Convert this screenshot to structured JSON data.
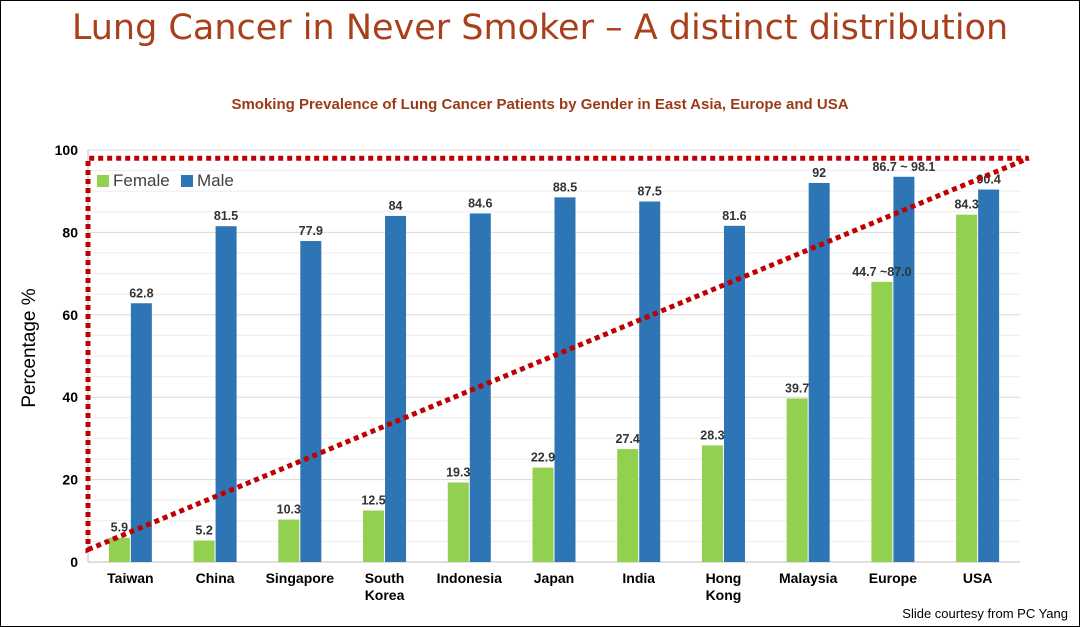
{
  "slide": {
    "title": "Lung Cancer in Never Smoker – A distinct distribution",
    "credit": "Slide courtesy from PC Yang"
  },
  "chart_data": {
    "type": "bar",
    "title": "Smoking Prevalence of Lung Cancer Patients by Gender in East Asia, Europe and USA",
    "xlabel": "",
    "ylabel": "Percentage %",
    "ylim": [
      0,
      100
    ],
    "yticks": [
      0,
      20,
      40,
      60,
      80,
      100
    ],
    "grid": true,
    "legend_position": "top-left",
    "categories": [
      "Taiwan",
      "China",
      "Singapore",
      "South Korea",
      "Indonesia",
      "Japan",
      "India",
      "Hong Kong",
      "Malaysia",
      "Europe",
      "USA"
    ],
    "category_labels": [
      [
        "Taiwan"
      ],
      [
        "China"
      ],
      [
        "Singapore"
      ],
      [
        "South",
        "Korea"
      ],
      [
        "Indonesia"
      ],
      [
        "Japan"
      ],
      [
        "India"
      ],
      [
        "Hong",
        "Kong"
      ],
      [
        "Malaysia"
      ],
      [
        "Europe"
      ],
      [
        "USA"
      ]
    ],
    "series": [
      {
        "name": "Female",
        "color": "#92d050",
        "values": [
          5.9,
          5.2,
          10.3,
          12.5,
          19.3,
          22.9,
          27.4,
          28.3,
          39.7,
          68,
          84.3
        ],
        "labels": [
          "5.9",
          "5.2",
          "10.3",
          "12.5",
          "19.3",
          "22.9",
          "27.4",
          "28.3",
          "39.7",
          "44.7 ~87.0",
          "84.3"
        ]
      },
      {
        "name": "Male",
        "color": "#2e75b6",
        "values": [
          62.8,
          81.5,
          77.9,
          84,
          84.6,
          88.5,
          87.5,
          81.6,
          92,
          93.5,
          90.4
        ],
        "labels": [
          "62.8",
          "81.5",
          "77.9",
          "84",
          "84.6",
          "88.5",
          "87.5",
          "81.6",
          "92",
          "86.7 ~ 98.1",
          "90.4"
        ]
      }
    ],
    "annotation": {
      "type": "dotted-triangle",
      "color": "#c00000",
      "description_points": [
        [
          -0.5,
          3
        ],
        [
          10.6,
          98
        ],
        [
          -0.5,
          98
        ]
      ]
    }
  }
}
